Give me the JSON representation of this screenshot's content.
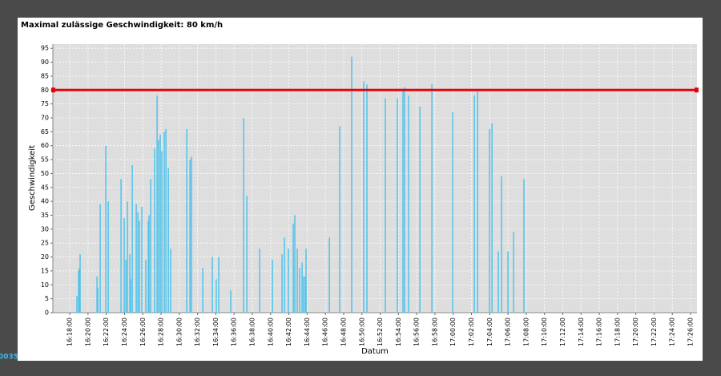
{
  "chart_data": {
    "type": "bar",
    "title": "Maximal zulässige Geschwindigkeit: 80 km/h",
    "xlabel": "Datum",
    "ylabel": "Geschwindigkeit",
    "footer_text": "0035",
    "color": "#4fc3ec",
    "threshold": 80,
    "threshold_color": "#e8000b",
    "grid": true,
    "x": [
      "16:18:47",
      "16:18:58",
      "16:19:03",
      "16:19:08",
      "16:20:59",
      "16:21:04",
      "16:21:20",
      "16:21:57",
      "16:22:13",
      "16:23:37",
      "16:23:58",
      "16:24:09",
      "16:24:19",
      "16:24:35",
      "16:24:40",
      "16:24:51",
      "16:25:17",
      "16:25:28",
      "16:25:38",
      "16:25:54",
      "16:26:20",
      "16:26:36",
      "16:26:41",
      "16:26:52",
      "16:27:18",
      "16:27:34",
      "16:27:44",
      "16:27:55",
      "16:28:05",
      "16:28:21",
      "16:28:32",
      "16:28:48",
      "16:29:03",
      "16:30:49",
      "16:31:10",
      "16:31:20",
      "16:32:34",
      "16:33:37",
      "16:34:03",
      "16:34:19",
      "16:35:38",
      "16:37:03",
      "16:37:24",
      "16:38:48",
      "16:40:12",
      "16:41:15",
      "16:41:31",
      "16:41:57",
      "16:42:29",
      "16:42:39",
      "16:42:55",
      "16:43:11",
      "16:43:27",
      "16:43:37",
      "16:43:48",
      "16:43:53",
      "16:46:26",
      "16:47:34",
      "16:48:53",
      "16:50:12",
      "16:50:33",
      "16:52:34",
      "16:53:53",
      "16:54:30",
      "16:54:41",
      "16:55:07",
      "16:56:21",
      "16:57:40",
      "16:59:57",
      "17:02:19",
      "17:02:40",
      "17:03:59",
      "17:04:15",
      "17:04:57",
      "17:05:18",
      "17:06:00",
      "17:06:37",
      "17:07:45"
    ],
    "values": [
      6,
      15,
      16,
      21,
      13,
      9,
      39,
      60,
      40,
      48,
      34,
      19,
      40,
      21,
      12,
      53,
      39,
      36,
      33,
      38,
      19,
      33,
      35,
      48,
      59,
      78,
      62,
      64,
      58,
      65,
      66,
      52,
      23,
      66,
      55,
      56,
      16,
      20,
      12,
      20,
      8,
      70,
      42,
      23,
      19,
      21,
      27,
      23,
      32,
      35,
      23,
      16,
      18,
      13,
      13,
      23,
      27,
      67,
      92,
      83,
      82,
      77,
      77,
      80,
      81,
      78,
      74,
      82,
      72,
      78,
      80,
      66,
      68,
      22,
      49,
      22,
      29,
      48
    ],
    "xlim": [
      "16:16:09",
      "17:26:42"
    ],
    "xticks": [
      "16:18:00",
      "16:20:00",
      "16:22:00",
      "16:24:00",
      "16:26:00",
      "16:28:00",
      "16:30:00",
      "16:32:00",
      "16:34:00",
      "16:36:00",
      "16:38:00",
      "16:40:00",
      "16:42:00",
      "16:44:00",
      "16:46:00",
      "16:48:00",
      "16:50:00",
      "16:52:00",
      "16:54:00",
      "16:56:00",
      "16:58:00",
      "17:00:00",
      "17:02:00",
      "17:04:00",
      "17:06:00",
      "17:08:00",
      "17:10:00",
      "17:12:00",
      "17:14:00",
      "17:16:00",
      "17:18:00",
      "17:20:00",
      "17:22:00",
      "17:24:00",
      "17:26:00"
    ],
    "ylim": [
      0,
      96.5
    ],
    "yticks": [
      0,
      5,
      10,
      15,
      20,
      25,
      30,
      35,
      40,
      45,
      50,
      55,
      60,
      65,
      70,
      75,
      80,
      85,
      90,
      95
    ]
  }
}
